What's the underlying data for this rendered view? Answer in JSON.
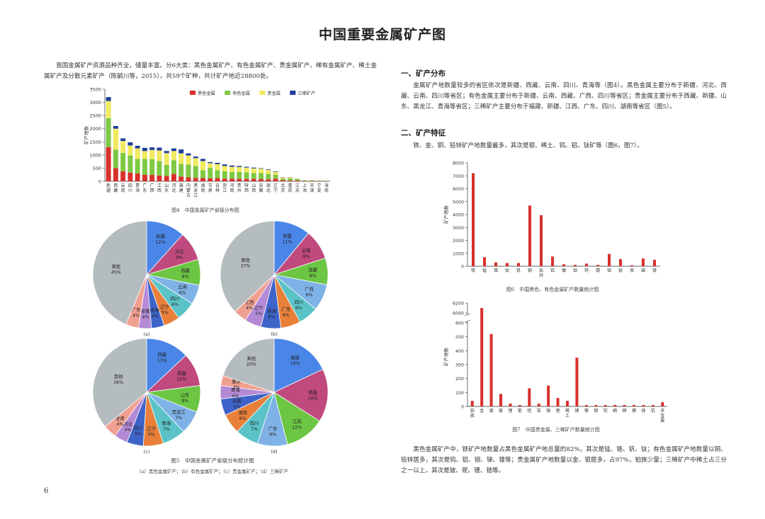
{
  "title": "中国重要金属矿产图",
  "page_number": "6",
  "left": {
    "intro": "我国金属矿产资源品种齐全，储量丰富。分6大类：黑色金属矿产、有色金属矿产、贵金属矿产、稀有金属矿产、稀土金属矿产及分散元素矿产（陈毓川等，2015），共59个矿种，共计矿产地近28800处。",
    "fig4_caption": "图4　中国金属矿产省级分布图",
    "fig5_caption": "图5　中国金属矿产省级分布统计图",
    "fig5_subcaption": "（a）黑色金属矿产；（b）有色金属矿产；（c）贵金属矿产；（d）三稀矿产"
  },
  "right": {
    "h1": "一、矿产分布",
    "p1": "金属矿产地数量较多的省区依次是新疆、西藏、云南、四川、青海等（图4）。黑色金属主要分布于新疆、河北、西藏、云南、四川等省区；有色金属主要分布于新疆、云南、西藏、广西、四川等省区；贵金属主要分布于西藏、新疆、山东、黑龙江、青海等省区；三稀矿产主要分布于福建、新疆、江西、广东、四川、湖南等省区（图5）。",
    "h2": "二、矿产特征",
    "p2": "铁、金、铜、铅锌矿产地数量最多，其次是银、稀土、钨、铝、钛矿等（图6，图7）。",
    "fig6_caption": "图6　中国黑色、有色金属矿产数量统计图",
    "fig7_caption": "图7　中国贵金属、三稀矿产数量统计图",
    "p3": "黑色金属矿产中，铁矿产地数量占黑色金属矿产地总量的82%，其次是锰、铬、钒、钛；有色金属矿产地数量以铜、铅锌居多，其次是钨、铝、钼、锑、镍等；贵金属矿产地数量以金、银居多，占97%，铂族少量；三稀矿产中稀土占三分之一以上，其次是铍、铌、锂、锆等。"
  },
  "chart_data": [
    {
      "id": "fig4",
      "type": "bar",
      "stacked": true,
      "ylabel": "矿产地数",
      "ylim": [
        0,
        3500
      ],
      "yticks": [
        0,
        500,
        1000,
        1500,
        2000,
        2500,
        3000,
        3500
      ],
      "legend_position": "top-right",
      "colors": {
        "black": "#d9302c",
        "nonferrous": "#7ec843",
        "precious": "#f0ea60",
        "rare": "#1f3d9c"
      },
      "categories": [
        "新疆",
        "西藏",
        "云南",
        "四川",
        "青海",
        "广东",
        "广西",
        "江西",
        "山东",
        "河北",
        "福建",
        "内蒙古",
        "黑龙江",
        "湖南",
        "甘肃",
        "吉林",
        "浙江",
        "河南",
        "贵州",
        "陕西",
        "山西",
        "安徽",
        "湖北",
        "辽宁",
        "北京",
        "重庆",
        "江苏",
        "上海",
        "天津",
        "宁夏",
        "海南"
      ],
      "category_labels": [
        "新疆",
        "西藏",
        "云南",
        "四川",
        "青海",
        "广东",
        "广西",
        "江西",
        "山东",
        "河北",
        "福建",
        "内蒙古",
        "黑龙江",
        "湖南",
        "甘肃",
        "吉林",
        "浙江",
        "河南",
        "贵州",
        "陕西",
        "山西",
        "安徽",
        "湖北",
        "辽宁",
        "北京",
        "重庆",
        "江苏",
        "上海",
        "天津",
        "宁夏",
        "海南"
      ],
      "series": [
        {
          "name": "黑色金属",
          "values": [
            1300,
            500,
            380,
            330,
            300,
            250,
            240,
            220,
            200,
            280,
            180,
            150,
            130,
            120,
            110,
            120,
            100,
            100,
            90,
            90,
            90,
            80,
            70,
            100,
            40,
            30,
            30,
            10,
            15,
            10,
            8
          ]
        },
        {
          "name": "有色金属",
          "values": [
            1100,
            700,
            700,
            650,
            550,
            600,
            600,
            550,
            420,
            520,
            480,
            480,
            450,
            300,
            400,
            300,
            280,
            250,
            260,
            250,
            220,
            230,
            210,
            150,
            60,
            80,
            50,
            20,
            15,
            12,
            10
          ]
        },
        {
          "name": "贵金属",
          "values": [
            650,
            800,
            450,
            380,
            400,
            300,
            350,
            400,
            450,
            350,
            400,
            350,
            300,
            350,
            180,
            230,
            200,
            200,
            190,
            180,
            180,
            170,
            150,
            100,
            40,
            40,
            20,
            10,
            10,
            5,
            5
          ]
        },
        {
          "name": "三稀矿产",
          "values": [
            150,
            100,
            100,
            120,
            100,
            120,
            100,
            110,
            80,
            100,
            150,
            80,
            60,
            80,
            40,
            50,
            60,
            50,
            40,
            30,
            30,
            20,
            20,
            20,
            10,
            8,
            5,
            3,
            3,
            2,
            2
          ]
        }
      ]
    },
    {
      "id": "fig5a",
      "type": "pie",
      "panel_label": "(a)",
      "slices": [
        {
          "name": "新疆",
          "value": 12,
          "label": "12%",
          "color": "#4a86e8"
        },
        {
          "name": "河北",
          "value": 9,
          "label": "9%",
          "color": "#c0497d"
        },
        {
          "name": "西藏",
          "value": 8,
          "label": "8%",
          "color": "#6cc644"
        },
        {
          "name": "云南",
          "value": 6,
          "label": "6%",
          "color": "#7fb2e6"
        },
        {
          "name": "四川",
          "value": 6,
          "label": "6%",
          "color": "#5bc3c7"
        },
        {
          "name": "辽宁",
          "value": 5,
          "label": "5%",
          "color": "#e8803a"
        },
        {
          "name": "青海",
          "value": 4,
          "label": "4%",
          "color": "#3e64c9"
        },
        {
          "name": "安徽",
          "value": 4,
          "label": "4%",
          "color": "#b48ad6"
        },
        {
          "name": "广东",
          "value": 4,
          "label": "4%",
          "color": "#f0a090"
        },
        {
          "name": "其他",
          "value": 45,
          "label": "45%",
          "color": "#b4bcc0"
        }
      ]
    },
    {
      "id": "fig5b",
      "type": "pie",
      "panel_label": "(b)",
      "slices": [
        {
          "name": "新疆",
          "value": 11,
          "label": "11%",
          "color": "#4a86e8"
        },
        {
          "name": "云南",
          "value": 9,
          "label": "9%",
          "color": "#c0497d"
        },
        {
          "name": "西藏",
          "value": 8,
          "label": "8%",
          "color": "#6cc644"
        },
        {
          "name": "广西",
          "value": 8,
          "label": "8%",
          "color": "#7fb2e6"
        },
        {
          "name": "四川",
          "value": 6,
          "label": "6%",
          "color": "#5bc3c7"
        },
        {
          "name": "广东",
          "value": 6,
          "label": "6%",
          "color": "#e8803a"
        },
        {
          "name": "青海",
          "value": 6,
          "label": "6%",
          "color": "#3e64c9"
        },
        {
          "name": "辽宁",
          "value": 5,
          "label": "5%",
          "color": "#b48ad6"
        },
        {
          "name": "江西",
          "value": 4,
          "label": "4%",
          "color": "#f0a090"
        },
        {
          "name": "其他",
          "value": 37,
          "label": "37%",
          "color": "#b4bcc0"
        }
      ]
    },
    {
      "id": "fig5c",
      "type": "pie",
      "panel_label": "(c)",
      "slices": [
        {
          "name": "西藏",
          "value": 13,
          "label": "13%",
          "color": "#4a86e8"
        },
        {
          "name": "新疆",
          "value": 10,
          "label": "10%",
          "color": "#c0497d"
        },
        {
          "name": "山东",
          "value": 8,
          "label": "8%",
          "color": "#6cc644"
        },
        {
          "name": "黑龙江",
          "value": 7,
          "label": "7%",
          "color": "#7fb2e6"
        },
        {
          "name": "青海",
          "value": 7,
          "label": "7%",
          "color": "#5bc3c7"
        },
        {
          "name": "辽宁",
          "value": 6,
          "label": "6%",
          "color": "#e8803a"
        },
        {
          "name": "四川",
          "value": 5,
          "label": "5%",
          "color": "#3e64c9"
        },
        {
          "name": "河北",
          "value": 4,
          "label": "4%",
          "color": "#b48ad6"
        },
        {
          "name": "甘肃",
          "value": 4,
          "label": "4%",
          "color": "#f0a090"
        },
        {
          "name": "其他",
          "value": 36,
          "label": "36%",
          "color": "#b4bcc0"
        }
      ]
    },
    {
      "id": "fig5d",
      "type": "pie",
      "panel_label": "(d)",
      "slices": [
        {
          "name": "福建",
          "value": 18,
          "label": "18%",
          "color": "#4a86e8"
        },
        {
          "name": "新疆",
          "value": 16,
          "label": "16%",
          "color": "#c0497d"
        },
        {
          "name": "江西",
          "value": 12,
          "label": "12%",
          "color": "#6cc644"
        },
        {
          "name": "广东",
          "value": 9,
          "label": "9%",
          "color": "#7fb2e6"
        },
        {
          "name": "四川",
          "value": 7,
          "label": "7%",
          "color": "#5bc3c7"
        },
        {
          "name": "湖南",
          "value": 6,
          "label": "6%",
          "color": "#e8803a"
        },
        {
          "name": "西藏",
          "value": 5,
          "label": "5%",
          "color": "#3e64c9"
        },
        {
          "name": "青海",
          "value": 4,
          "label": "4%",
          "color": "#b48ad6"
        },
        {
          "name": "重庆",
          "value": 3,
          "label": "3%",
          "color": "#f0a090"
        },
        {
          "name": "其他",
          "value": 20,
          "label": "20%",
          "color": "#b4bcc0"
        }
      ]
    },
    {
      "id": "fig6",
      "type": "bar",
      "ylabel": "矿产地数",
      "ylim": [
        0,
        8000
      ],
      "yticks": [
        0,
        1000,
        2000,
        3000,
        4000,
        5000,
        6000,
        7000,
        8000
      ],
      "color": "#d9302c",
      "categories": [
        "铁",
        "锰",
        "铬",
        "钛",
        "钒",
        "铜",
        "铅锌",
        "铝",
        "镍",
        "钴",
        "钨",
        "锡",
        "钼",
        "铋",
        "汞",
        "锑",
        "镁"
      ],
      "category_labels": [
        "铁",
        "锰",
        "铬",
        "钛",
        "钒",
        "铜",
        "铅锌",
        "铝",
        "镍",
        "钴",
        "钨",
        "锡",
        "钼",
        "铋",
        "汞",
        "锑",
        "镁"
      ],
      "values": [
        7200,
        700,
        300,
        250,
        250,
        4700,
        3950,
        750,
        150,
        100,
        200,
        100,
        950,
        550,
        80,
        600,
        500
      ]
    },
    {
      "id": "fig7",
      "type": "bar",
      "ylabel": "矿产地数",
      "broken_axis": true,
      "yticks": [
        0,
        100,
        200,
        300,
        400,
        500,
        600,
        6000,
        6200
      ],
      "color": "#d9302c",
      "categories": [
        "铂族",
        "金",
        "银",
        "铍",
        "锂",
        "铌",
        "钽",
        "锆",
        "铷",
        "铯",
        "稀土",
        "锗",
        "镓",
        "铟",
        "铊",
        "硒",
        "碲",
        "镉",
        "铼",
        "钪",
        "多金属"
      ],
      "category_labels": [
        "铂族",
        "金",
        "银",
        "铍",
        "锂",
        "铌",
        "钽",
        "锆",
        "铷",
        "铯",
        "稀土",
        "锗",
        "镓",
        "铟",
        "铊",
        "硒",
        "碲",
        "镉",
        "铼",
        "钪",
        "多金属"
      ],
      "values": [
        40,
        6100,
        520,
        90,
        20,
        10,
        130,
        20,
        150,
        60,
        40,
        350,
        10,
        10,
        10,
        10,
        10,
        10,
        10,
        10,
        30
      ]
    }
  ]
}
